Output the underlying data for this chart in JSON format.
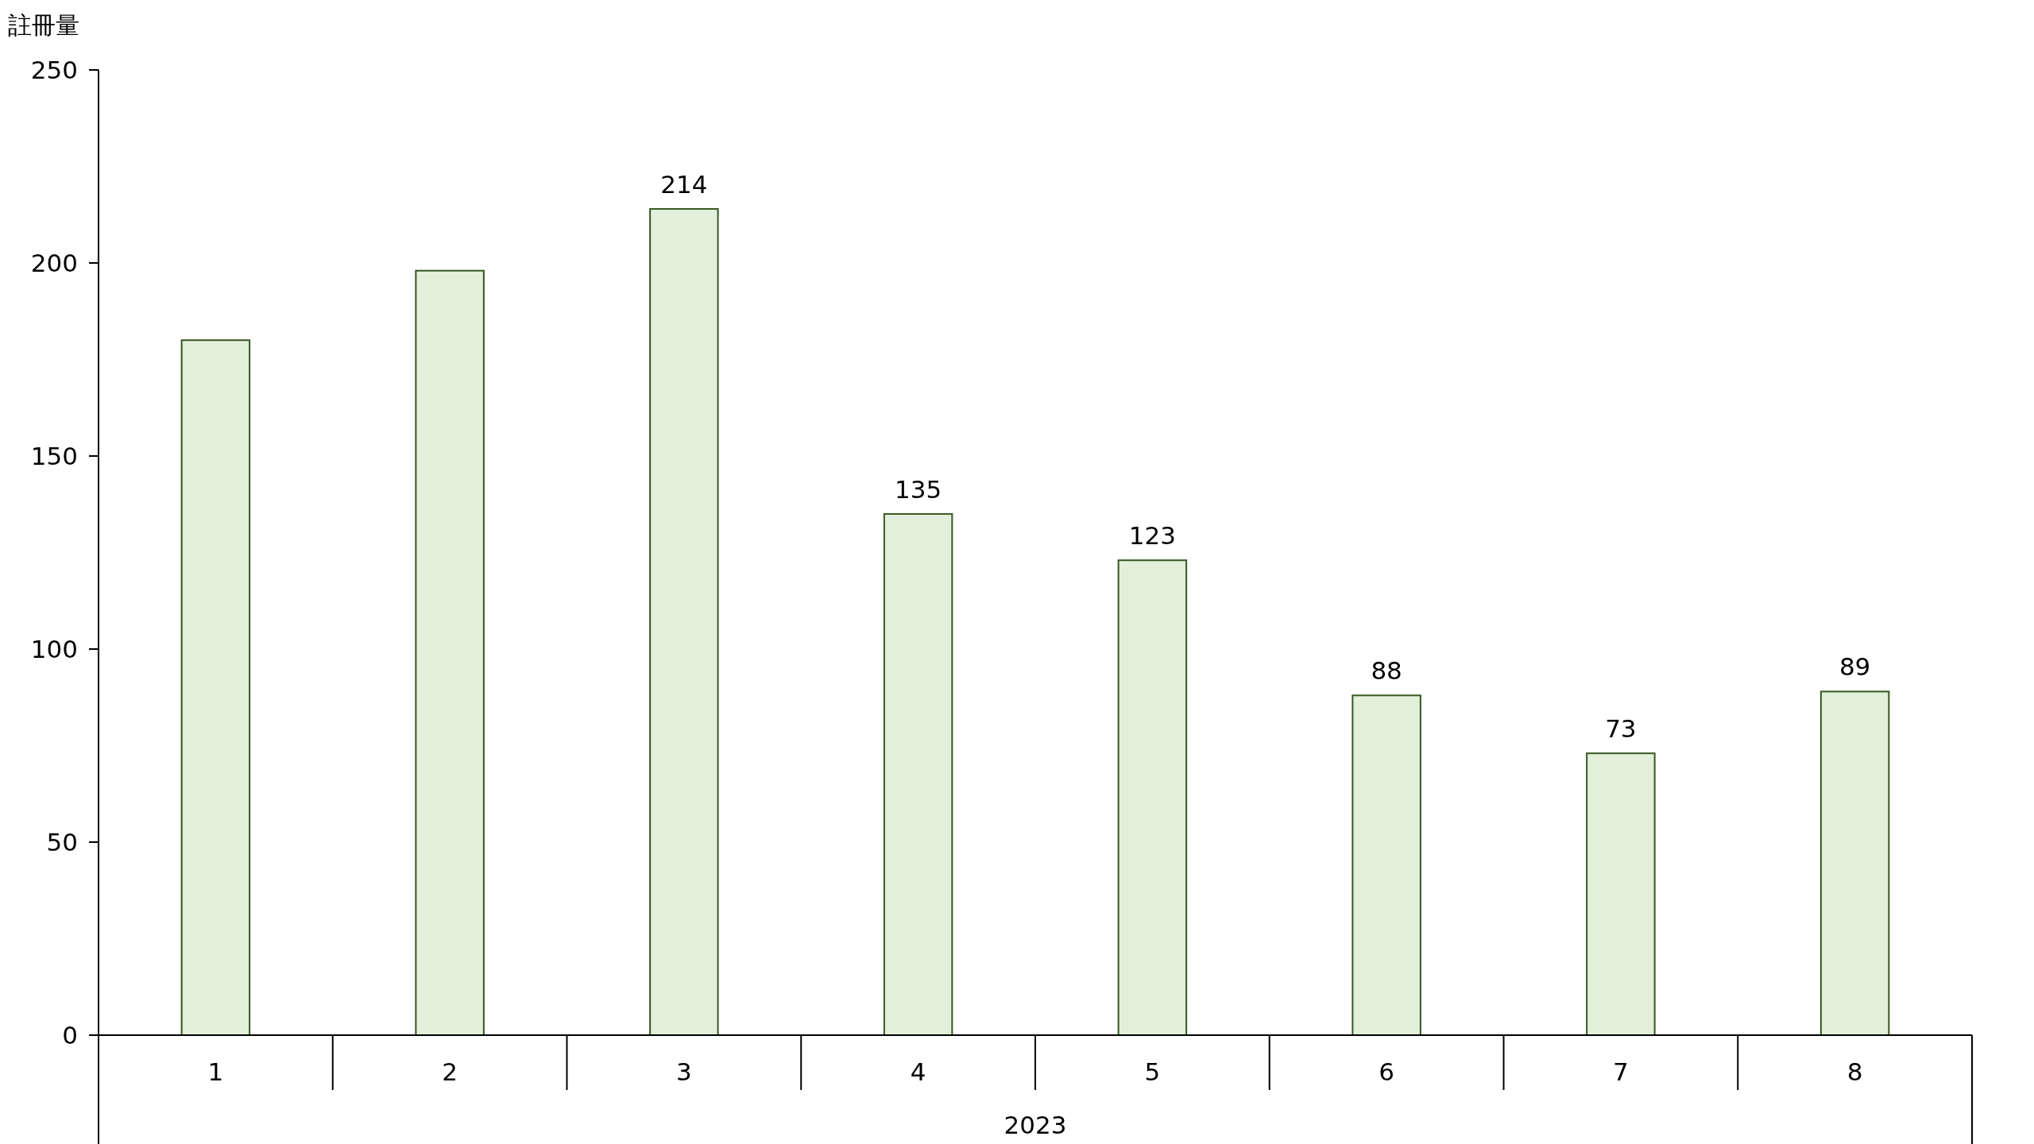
{
  "chart_data": {
    "type": "bar",
    "ylabel": "註冊量",
    "xlabel": "2023",
    "categories": [
      "1",
      "2",
      "3",
      "4",
      "5",
      "6",
      "7",
      "8"
    ],
    "values": [
      180,
      198,
      214,
      135,
      123,
      88,
      73,
      89
    ],
    "value_labels": [
      null,
      null,
      "214",
      "135",
      "123",
      "88",
      "73",
      "89"
    ],
    "color": "#e2efda",
    "ylim": [
      0,
      250
    ],
    "yticks": [
      0,
      50,
      100,
      150,
      200,
      250
    ]
  }
}
